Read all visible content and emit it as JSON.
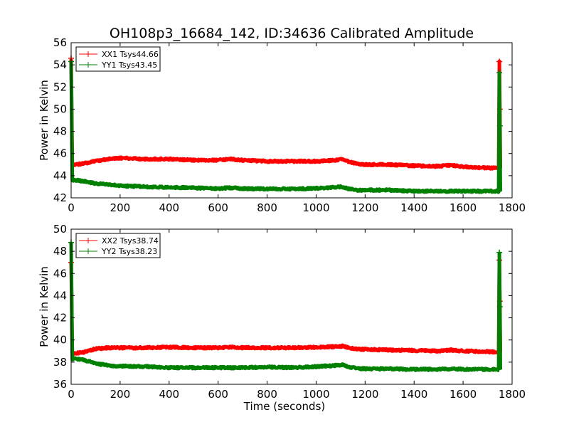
{
  "figure": {
    "title": "OH108p3_16684_142, ID:34636 Calibrated Amplitude"
  },
  "chart_data": [
    {
      "type": "line",
      "title": "OH108p3_16684_142, ID:34636 Calibrated Amplitude",
      "xlabel": "",
      "ylabel": "Power in Kelvin",
      "xlim": [
        0,
        1800
      ],
      "ylim": [
        42,
        56
      ],
      "xticks": [
        "0",
        "200",
        "400",
        "600",
        "800",
        "1000",
        "1200",
        "1400",
        "1600",
        "1800"
      ],
      "yticks": [
        "42",
        "44",
        "46",
        "48",
        "50",
        "52",
        "54",
        "56"
      ],
      "grid": false,
      "legend_position": "top-left",
      "x": [
        0,
        5,
        20,
        50,
        100,
        150,
        200,
        300,
        400,
        500,
        600,
        650,
        700,
        800,
        900,
        1000,
        1080,
        1110,
        1130,
        1160,
        1200,
        1300,
        1400,
        1500,
        1550,
        1600,
        1700,
        1745,
        1748,
        1750,
        1752
      ],
      "series": [
        {
          "name": "XX1 Tsys44.66",
          "color": "#ff0000",
          "values": [
            54.6,
            45.0,
            45.0,
            45.1,
            45.3,
            45.5,
            45.6,
            45.5,
            45.5,
            45.4,
            45.4,
            45.5,
            45.4,
            45.3,
            45.3,
            45.3,
            45.4,
            45.5,
            45.3,
            45.1,
            45.0,
            45.0,
            44.9,
            44.85,
            44.95,
            44.8,
            44.7,
            44.7,
            54.3,
            50.0,
            44.7
          ]
        },
        {
          "name": "YY1 Tsys43.45",
          "color": "#008000",
          "values": [
            54.3,
            43.6,
            43.6,
            43.5,
            43.3,
            43.2,
            43.1,
            43.0,
            42.95,
            42.9,
            42.85,
            42.9,
            42.85,
            42.8,
            42.8,
            42.85,
            42.95,
            43.0,
            42.85,
            42.7,
            42.7,
            42.7,
            42.6,
            42.6,
            42.6,
            42.6,
            42.6,
            42.6,
            53.3,
            48.5,
            42.6
          ]
        }
      ]
    },
    {
      "type": "line",
      "title": "",
      "xlabel": "Time (seconds)",
      "ylabel": "Power in Kelvin",
      "xlim": [
        0,
        1800
      ],
      "ylim": [
        36,
        50
      ],
      "xticks": [
        "0",
        "200",
        "400",
        "600",
        "800",
        "1000",
        "1200",
        "1400",
        "1600",
        "1800"
      ],
      "yticks": [
        "36",
        "38",
        "40",
        "42",
        "44",
        "46",
        "48",
        "50"
      ],
      "grid": false,
      "legend_position": "top-left",
      "x": [
        0,
        5,
        20,
        50,
        100,
        150,
        200,
        300,
        400,
        500,
        600,
        650,
        700,
        800,
        900,
        1000,
        1080,
        1110,
        1130,
        1160,
        1200,
        1300,
        1400,
        1500,
        1550,
        1600,
        1700,
        1745,
        1748,
        1750,
        1752
      ],
      "series": [
        {
          "name": "XX2 Tsys38.74",
          "color": "#ff0000",
          "values": [
            47.0,
            38.8,
            38.8,
            38.9,
            39.2,
            39.3,
            39.3,
            39.3,
            39.35,
            39.3,
            39.3,
            39.35,
            39.3,
            39.3,
            39.3,
            39.35,
            39.4,
            39.45,
            39.3,
            39.2,
            39.15,
            39.1,
            39.05,
            39.0,
            39.1,
            39.0,
            38.95,
            38.9,
            47.2,
            43.5,
            38.9
          ]
        },
        {
          "name": "YY2 Tsys38.23",
          "color": "#008000",
          "values": [
            48.8,
            38.3,
            38.3,
            38.2,
            37.9,
            37.7,
            37.65,
            37.6,
            37.5,
            37.5,
            37.5,
            37.5,
            37.5,
            37.55,
            37.5,
            37.6,
            37.7,
            37.75,
            37.6,
            37.45,
            37.4,
            37.4,
            37.35,
            37.35,
            37.4,
            37.35,
            37.35,
            37.35,
            47.9,
            43.0,
            37.35
          ]
        }
      ]
    }
  ]
}
